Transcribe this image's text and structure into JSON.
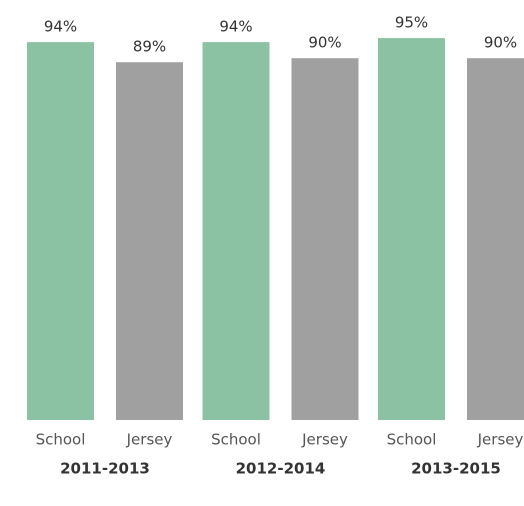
{
  "chart_data": {
    "type": "bar",
    "categories": [
      "2011-2013",
      "2012-2014",
      "2013-2015"
    ],
    "series": [
      {
        "name": "School",
        "color": "#8cc2a4",
        "values": [
          94,
          94,
          95
        ],
        "value_labels": [
          "94%",
          "94%",
          "95%"
        ]
      },
      {
        "name": "Jersey",
        "color": "#a0a0a0",
        "values": [
          89,
          90,
          90
        ],
        "value_labels": [
          "89%",
          "90%",
          "90%"
        ]
      }
    ]
  }
}
